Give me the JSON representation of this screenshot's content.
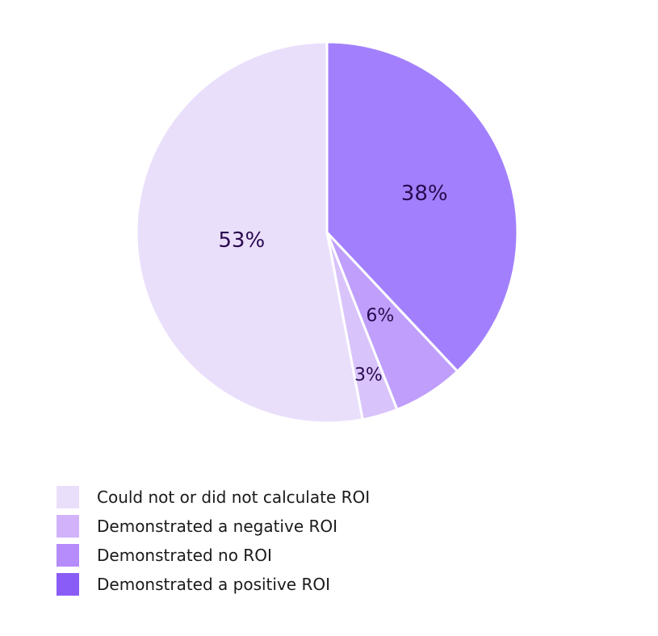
{
  "chart_data": {
    "type": "pie",
    "title": "",
    "slices": [
      {
        "label": "Demonstrated a positive ROI",
        "value": 38,
        "value_label": "38%",
        "color": "#a280fd"
      },
      {
        "label": "Demonstrated no ROI",
        "value": 6,
        "value_label": "6%",
        "color": "#bf9ffb"
      },
      {
        "label": "Demonstrated a negative ROI",
        "value": 3,
        "value_label": "3%",
        "color": "#d9c3fb"
      },
      {
        "label": "Could not or did not calculate ROI",
        "value": 53,
        "value_label": "53%",
        "color": "#eadffb"
      }
    ],
    "legend": {
      "placement": "bottom-left",
      "entries": [
        {
          "label": "Could not or did not calculate ROI",
          "color": "#eadffb"
        },
        {
          "label": "Demonstrated a negative ROI",
          "color": "#d2b3fb"
        },
        {
          "label": "Demonstrated no ROI",
          "color": "#b68bfb"
        },
        {
          "label": "Demonstrated a positive ROI",
          "color": "#8a5cf7"
        }
      ]
    },
    "label_color": "#2a0a4f"
  }
}
